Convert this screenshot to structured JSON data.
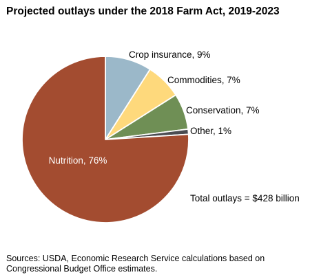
{
  "chart_data": {
    "type": "pie",
    "title": "Projected outlays under the 2018 Farm Act, 2019-2023",
    "slices": [
      {
        "name": "Crop insurance",
        "value": 9,
        "label": "Crop insurance, 9%",
        "color": "#9BB8C9"
      },
      {
        "name": "Commodities",
        "value": 7,
        "label": "Commodities, 7%",
        "color": "#FED97C"
      },
      {
        "name": "Conservation",
        "value": 7,
        "label": "Conservation, 7%",
        "color": "#6F8F55"
      },
      {
        "name": "Other",
        "value": 1,
        "label": "Other, 1%",
        "color": "#4A4C51"
      },
      {
        "name": "Nutrition",
        "value": 76,
        "label": "Nutrition, 76%",
        "color": "#A34C30"
      }
    ],
    "start_angle": "12 o'clock",
    "direction": "clockwise",
    "annotation": "Total outlays = $428 billion"
  },
  "source": "Sources: USDA, Economic Research Service calculations based on Congressional Budget Office estimates."
}
